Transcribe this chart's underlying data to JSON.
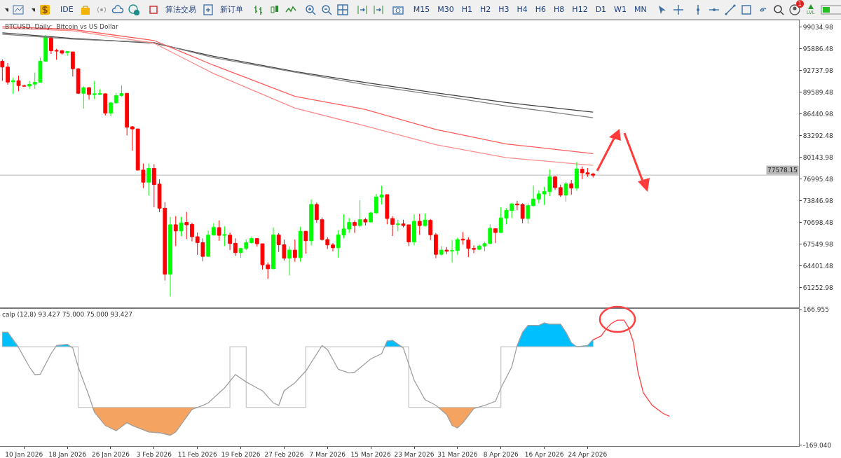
{
  "chart_data": [
    {
      "type": "other",
      "annotations": [
        "IDE",
        "算法交易",
        "新订单",
        "M15",
        "M30",
        "H1",
        "H2",
        "H3",
        "H4",
        "H6",
        "H8",
        "H12",
        "D1",
        "W1",
        "MN",
        "1",
        "LVL"
      ]
    },
    {
      "type": "candlestick",
      "title": "BTCUSD, Daily:  Bitcoin vs US Dollar",
      "x": [
        "2026-01-06",
        "2026-01-07",
        "2026-01-08",
        "2026-01-09",
        "2026-01-10",
        "2026-01-11",
        "2026-01-12",
        "2026-01-13",
        "2026-01-14",
        "2026-01-15",
        "2026-01-16",
        "2026-01-17",
        "2026-01-18",
        "2026-01-19",
        "2026-01-20",
        "2026-01-21",
        "2026-01-22",
        "2026-01-23",
        "2026-01-24",
        "2026-01-25",
        "2026-01-26",
        "2026-01-27",
        "2026-01-28",
        "2026-01-29",
        "2026-01-30",
        "2026-01-31",
        "2026-02-01",
        "2026-02-02",
        "2026-02-03",
        "2026-02-04",
        "2026-02-05",
        "2026-02-06",
        "2026-02-07",
        "2026-02-08",
        "2026-02-09",
        "2026-02-10",
        "2026-02-11",
        "2026-02-12",
        "2026-02-13",
        "2026-02-14",
        "2026-02-15",
        "2026-02-16",
        "2026-02-17",
        "2026-02-18",
        "2026-02-19",
        "2026-02-20",
        "2026-02-21",
        "2026-02-22",
        "2026-02-23",
        "2026-02-24",
        "2026-02-25",
        "2026-02-26",
        "2026-02-27",
        "2026-02-28",
        "2026-03-01",
        "2026-03-02",
        "2026-03-03",
        "2026-03-04",
        "2026-03-05",
        "2026-03-06",
        "2026-03-07",
        "2026-03-08",
        "2026-03-09",
        "2026-03-10",
        "2026-03-11",
        "2026-03-12",
        "2026-03-13",
        "2026-03-14",
        "2026-03-15",
        "2026-03-16",
        "2026-03-17",
        "2026-03-18",
        "2026-03-19",
        "2026-03-20",
        "2026-03-21",
        "2026-03-22",
        "2026-03-23",
        "2026-03-24",
        "2026-03-25",
        "2026-03-26",
        "2026-03-27",
        "2026-03-28",
        "2026-03-29",
        "2026-03-30",
        "2026-03-31",
        "2026-04-01",
        "2026-04-02",
        "2026-04-03",
        "2026-04-04",
        "2026-04-05",
        "2026-04-06",
        "2026-04-07",
        "2026-04-08",
        "2026-04-09",
        "2026-04-10",
        "2026-04-11",
        "2026-04-12",
        "2026-04-13",
        "2026-04-14",
        "2026-04-15",
        "2026-04-16",
        "2026-04-17",
        "2026-04-18",
        "2026-04-19",
        "2026-04-20",
        "2026-04-21",
        "2026-04-22",
        "2026-04-23",
        "2026-04-24",
        "2026-04-25"
      ],
      "ohlc": [
        [
          94090,
          94360,
          91240,
          93240
        ],
        [
          93240,
          93820,
          90690,
          91070
        ],
        [
          91100,
          91680,
          89340,
          91270
        ],
        [
          91270,
          91980,
          89740,
          90560
        ],
        [
          90530,
          90690,
          90360,
          90460
        ],
        [
          90490,
          91240,
          90080,
          90730
        ],
        [
          90760,
          92460,
          90050,
          91030
        ],
        [
          91030,
          94600,
          91030,
          94090
        ],
        [
          94090,
          97890,
          94090,
          97580
        ],
        [
          97580,
          97580,
          95140,
          95610
        ],
        [
          95650,
          95880,
          94290,
          95550
        ],
        [
          95610,
          95710,
          95040,
          95270
        ],
        [
          95340,
          95550,
          94870,
          95480
        ],
        [
          95440,
          95440,
          91880,
          93000
        ],
        [
          93000,
          93070,
          89340,
          89440
        ],
        [
          89440,
          90460,
          87230,
          90250
        ],
        [
          90250,
          90360,
          88520,
          89270
        ],
        [
          89270,
          91240,
          88590,
          89370
        ],
        [
          89300,
          90020,
          89200,
          89410
        ],
        [
          89370,
          89370,
          86220,
          86560
        ],
        [
          86560,
          88180,
          86150,
          88050
        ],
        [
          88050,
          89510,
          87910,
          89100
        ],
        [
          89100,
          90560,
          88930,
          89410
        ],
        [
          89440,
          89440,
          83330,
          84520
        ],
        [
          84590,
          84690,
          81130,
          84280
        ],
        [
          84280,
          84280,
          78250,
          78310
        ],
        [
          78310,
          79260,
          75700,
          76550
        ],
        [
          76550,
          79260,
          74620,
          78550
        ],
        [
          78550,
          79160,
          72920,
          76210
        ],
        [
          76280,
          76960,
          72210,
          72780
        ],
        [
          72780,
          73670,
          62300,
          63220
        ],
        [
          63220,
          71530,
          60000,
          70380
        ],
        [
          70380,
          71630,
          67290,
          69490
        ],
        [
          69490,
          71530,
          68750,
          70650
        ],
        [
          70720,
          72240,
          68310,
          70380
        ],
        [
          70440,
          70680,
          67970,
          68650
        ],
        [
          68650,
          69260,
          66030,
          67800
        ],
        [
          67800,
          68410,
          65120,
          65800
        ],
        [
          65800,
          69530,
          65800,
          68880
        ],
        [
          68880,
          70610,
          68880,
          70000
        ],
        [
          69970,
          71020,
          68070,
          68850
        ],
        [
          68850,
          70140,
          67290,
          68950
        ],
        [
          68880,
          69260,
          66710,
          67660
        ],
        [
          67700,
          68410,
          65870,
          66340
        ],
        [
          66340,
          67050,
          65590,
          66950
        ],
        [
          66950,
          68270,
          66710,
          67800
        ],
        [
          67800,
          68680,
          67630,
          68380
        ],
        [
          68380,
          68440,
          67220,
          67630
        ],
        [
          67630,
          67630,
          63900,
          64580
        ],
        [
          64580,
          64920,
          62540,
          64000
        ],
        [
          64000,
          70000,
          64000,
          68920
        ],
        [
          68920,
          69190,
          66440,
          67490
        ],
        [
          67490,
          68240,
          65190,
          65530
        ],
        [
          65530,
          67220,
          63050,
          66710
        ],
        [
          66710,
          68240,
          65020,
          65630
        ],
        [
          65630,
          70110,
          65020,
          69430
        ],
        [
          69430,
          69490,
          66200,
          68070
        ],
        [
          68070,
          74070,
          67390,
          73330
        ],
        [
          73330,
          73600,
          70680,
          71120
        ],
        [
          71120,
          71460,
          68070,
          68240
        ],
        [
          68240,
          68580,
          66880,
          67460
        ],
        [
          67460,
          67730,
          66540,
          67050
        ],
        [
          67050,
          69600,
          65590,
          68920
        ],
        [
          68920,
          71900,
          68410,
          69770
        ],
        [
          69770,
          71360,
          69190,
          70720
        ],
        [
          70720,
          71020,
          69190,
          70270
        ],
        [
          70270,
          73940,
          70000,
          71120
        ],
        [
          71120,
          71360,
          70270,
          70780
        ],
        [
          70780,
          72240,
          70720,
          72110
        ],
        [
          72110,
          74850,
          71970,
          74410
        ],
        [
          74410,
          76040,
          73330,
          74680
        ],
        [
          74750,
          74750,
          70440,
          71290
        ],
        [
          71290,
          71630,
          68750,
          70440
        ],
        [
          70410,
          71120,
          69430,
          70510
        ],
        [
          70510,
          71120,
          70000,
          70270
        ],
        [
          70380,
          70380,
          67290,
          67900
        ],
        [
          67900,
          71900,
          67390,
          70890
        ],
        [
          70890,
          71970,
          68920,
          70270
        ],
        [
          70270,
          72040,
          70110,
          71060
        ],
        [
          71020,
          71220,
          68170,
          68920
        ],
        [
          68920,
          69190,
          65530,
          66100
        ],
        [
          66100,
          67290,
          65930,
          66710
        ],
        [
          66710,
          67150,
          66140,
          66540
        ],
        [
          66580,
          68170,
          64920,
          66650
        ],
        [
          66650,
          68510,
          66030,
          68240
        ],
        [
          68310,
          69330,
          67490,
          68170
        ],
        [
          68170,
          68580,
          65700,
          66950
        ],
        [
          66950,
          67390,
          66270,
          66820
        ],
        [
          66820,
          67560,
          66710,
          67290
        ],
        [
          67290,
          67900,
          66540,
          67660
        ],
        [
          67660,
          70440,
          67630,
          69870
        ],
        [
          69830,
          69870,
          67730,
          69260
        ],
        [
          69260,
          72920,
          69190,
          71360
        ],
        [
          71360,
          72780,
          70440,
          72450
        ],
        [
          72450,
          73500,
          71360,
          73400
        ],
        [
          73400,
          73840,
          72480,
          73260
        ],
        [
          73330,
          73500,
          70610,
          71290
        ],
        [
          71290,
          73500,
          70550,
          73160
        ],
        [
          73160,
          76040,
          72990,
          74110
        ],
        [
          74110,
          75360,
          73500,
          74850
        ],
        [
          74850,
          75870,
          73260,
          75190
        ],
        [
          75190,
          78420,
          74510,
          77330
        ],
        [
          77330,
          77470,
          75430,
          75770
        ],
        [
          75770,
          76210,
          74410,
          74680
        ],
        [
          74680,
          76550,
          73730,
          76310
        ],
        [
          76310,
          76860,
          74750,
          75700
        ],
        [
          75700,
          79500,
          75300,
          78480
        ],
        [
          78420,
          78820,
          76990,
          77910
        ],
        [
          77910,
          78590,
          77330,
          77740
        ],
        [
          77740,
          77910,
          77230,
          77570
        ]
      ],
      "colors": [
        "#ff0000",
        "#ff0000",
        "#00ff00",
        "#ff0000",
        "#ff0000",
        "#00ff00",
        "#00ff00",
        "#00ff00",
        "#00ff00",
        "#ff0000",
        "#ff0000",
        "#ff0000",
        "#00ff00",
        "#ff0000",
        "#ff0000",
        "#00ff00",
        "#ff0000",
        "#00ff00",
        "#00ff00",
        "#ff0000",
        "#00ff00",
        "#00ff00",
        "#00ff00",
        "#ff0000",
        "#ff0000",
        "#ff0000",
        "#ff0000",
        "#00ff00",
        "#ff0000",
        "#ff0000",
        "#ff0000",
        "#00ff00",
        "#ff0000",
        "#00ff00",
        "#ff0000",
        "#ff0000",
        "#ff0000",
        "#ff0000",
        "#00ff00",
        "#00ff00",
        "#ff0000",
        "#00ff00",
        "#ff0000",
        "#ff0000",
        "#00ff00",
        "#00ff00",
        "#00ff00",
        "#ff0000",
        "#ff0000",
        "#ff0000",
        "#00ff00",
        "#ff0000",
        "#ff0000",
        "#00ff00",
        "#ff0000",
        "#00ff00",
        "#ff0000",
        "#00ff00",
        "#ff0000",
        "#ff0000",
        "#ff0000",
        "#ff0000",
        "#00ff00",
        "#00ff00",
        "#00ff00",
        "#ff0000",
        "#00ff00",
        "#ff0000",
        "#00ff00",
        "#00ff00",
        "#00ff00",
        "#ff0000",
        "#ff0000",
        "#00ff00",
        "#ff0000",
        "#ff0000",
        "#00ff00",
        "#ff0000",
        "#00ff00",
        "#ff0000",
        "#ff0000",
        "#00ff00",
        "#ff0000",
        "#00ff00",
        "#00ff00",
        "#ff0000",
        "#ff0000",
        "#ff0000",
        "#00ff00",
        "#00ff00",
        "#00ff00",
        "#ff0000",
        "#00ff00",
        "#00ff00",
        "#00ff00",
        "#ff0000",
        "#ff0000",
        "#00ff00",
        "#00ff00",
        "#00ff00",
        "#00ff00",
        "#00ff00",
        "#ff0000",
        "#ff0000",
        "#00ff00",
        "#ff0000",
        "#00ff00",
        "#ff0000",
        "#ff0000",
        "#ff0000"
      ],
      "series": [
        {
          "type": "line",
          "color": "#404040",
          "x": [
            "2026-01-06",
            "2026-01-19",
            "2026-02-03",
            "2026-02-14",
            "2026-03-01",
            "2026-03-14",
            "2026-03-27",
            "2026-04-09",
            "2026-04-25"
          ],
          "values": [
            98200,
            97400,
            96700,
            94800,
            92600,
            91000,
            89500,
            88100,
            86700
          ]
        },
        {
          "type": "line",
          "color": "#808080",
          "x": [
            "2026-01-06",
            "2026-01-19",
            "2026-02-03",
            "2026-02-14",
            "2026-03-01",
            "2026-03-14",
            "2026-03-27",
            "2026-04-09",
            "2026-04-25"
          ],
          "values": [
            98000,
            97300,
            96800,
            94600,
            92500,
            90700,
            89200,
            87600,
            85900
          ]
        },
        {
          "type": "line",
          "color": "#ff5a5a",
          "x": [
            "2026-01-06",
            "2026-01-19",
            "2026-02-03",
            "2026-02-14",
            "2026-03-01",
            "2026-03-14",
            "2026-03-27",
            "2026-04-09",
            "2026-04-25"
          ],
          "values": [
            99100,
            98700,
            97100,
            93500,
            89000,
            87100,
            84200,
            82100,
            80700
          ]
        },
        {
          "type": "line",
          "color": "#ff8c8c",
          "x": [
            "2026-01-06",
            "2026-01-19",
            "2026-02-03",
            "2026-02-14",
            "2026-03-01",
            "2026-03-14",
            "2026-03-27",
            "2026-04-09",
            "2026-04-25"
          ],
          "values": [
            98900,
            98500,
            96700,
            92300,
            87300,
            84700,
            82000,
            80100,
            79000
          ]
        }
      ],
      "xlim": [
        "2026-01-05T13:40",
        "2026-06-02"
      ],
      "ylim": [
        58400,
        100020
      ],
      "yticks": [
        99034.98,
        95886.48,
        92737.98,
        89589.48,
        86440.98,
        83292.48,
        80143.98,
        76995.48,
        73846.98,
        70698.48,
        67549.98,
        64401.48,
        61252.98
      ],
      "tick_labels": "y",
      "ref_lines": [
        {
          "axis": "y",
          "value": 77578.15,
          "label": "77578.15",
          "color": "#b8b8b8"
        }
      ]
    },
    {
      "type": "line",
      "annotations": [
        "calp (12,8) 93.427 75.000 75.000 93.427"
      ],
      "series": [
        {
          "type": "area",
          "color": "#00bfff",
          "x": [
            "2026-01-06",
            "2026-01-06",
            "2026-01-07",
            "2026-01-09"
          ],
          "values": [
            75,
            111,
            111,
            75
          ]
        },
        {
          "type": "area",
          "color": "#00bfff",
          "x": [
            "2026-01-15T20:00",
            "2026-01-16",
            "2026-01-18",
            "2026-01-18T16:00"
          ],
          "values": [
            75,
            78,
            81,
            75
          ]
        },
        {
          "type": "area",
          "color": "#00bfff",
          "x": [
            "2026-03-17T13:00",
            "2026-03-18",
            "2026-03-19",
            "2026-03-20T19:00"
          ],
          "values": [
            75,
            89,
            91,
            75
          ]
        },
        {
          "type": "area",
          "color": "#00bfff",
          "x": [
            "2026-04-10T23:00",
            "2026-04-11",
            "2026-04-12",
            "2026-04-13",
            "2026-04-15",
            "2026-04-16",
            "2026-04-17",
            "2026-04-19",
            "2026-04-20",
            "2026-04-21",
            "2026-04-22",
            "2026-04-24",
            "2026-04-25",
            "2026-04-25"
          ],
          "values": [
            75,
            78,
            111,
            128,
            128,
            134,
            131,
            131,
            111,
            85,
            75,
            78,
            93,
            75
          ]
        },
        {
          "type": "area",
          "color": "#f4a460",
          "x": [
            "2026-01-22T17:00",
            "2026-01-23",
            "2026-01-25",
            "2026-01-27",
            "2026-01-29",
            "2026-01-30",
            "2026-02-02",
            "2026-02-04",
            "2026-02-06",
            "2026-02-07",
            "2026-02-10",
            "2026-02-10T12:00"
          ],
          "values": [
            -75,
            -87,
            -120,
            -133,
            -113,
            -120,
            -136,
            -138,
            -144,
            -136,
            -80,
            -75
          ]
        },
        {
          "type": "area",
          "color": "#f4a460",
          "x": [
            "2026-03-27T10:00",
            "2026-03-29",
            "2026-03-30",
            "2026-03-31",
            "2026-04-01",
            "2026-04-03",
            "2026-04-03T10:00"
          ],
          "values": [
            -75,
            -93,
            -120,
            -126,
            -113,
            -78,
            -75
          ]
        },
        {
          "type": "step",
          "color": "#c8c8c8",
          "x": [
            "2026-01-06",
            "2026-01-20",
            "2026-02-17",
            "2026-02-20",
            "2026-03-03",
            "2026-03-22",
            "2026-04-08",
            "2026-04-25"
          ],
          "values": [
            75,
            -75,
            75,
            -75,
            75,
            -75,
            75,
            75
          ]
        },
        {
          "type": "line",
          "color": "#ff4040",
          "x": [
            "2026-04-25",
            "2026-04-26T12:00",
            "2026-04-27T14:00",
            "2026-04-28T10:00",
            "2026-04-29T12:00",
            "2026-04-30T17:00",
            "2026-05-01T12:00",
            "2026-05-02T10:00",
            "2026-05-03T07:00",
            "2026-05-04T07:00",
            "2026-05-05T22:00",
            "2026-05-07T22:00",
            "2026-05-09T02:00"
          ],
          "values": [
            92,
            102,
            122,
            133,
            141,
            141,
            124,
            88,
            13,
            -39,
            -70,
            -90,
            -97
          ]
        },
        {
          "type": "line",
          "color": "#a0a0a0",
          "x": [
            "2026-01-06",
            "2026-01-07",
            "2026-01-09",
            "2026-01-11",
            "2026-01-12",
            "2026-01-13",
            "2026-01-15",
            "2026-01-16",
            "2026-01-18",
            "2026-01-19",
            "2026-01-20",
            "2026-01-22",
            "2026-01-23",
            "2026-01-25",
            "2026-01-27",
            "2026-01-29",
            "2026-01-30",
            "2026-02-02",
            "2026-02-04",
            "2026-02-06",
            "2026-02-07",
            "2026-02-10",
            "2026-02-12",
            "2026-02-13",
            "2026-02-16",
            "2026-02-18",
            "2026-02-20",
            "2026-02-22",
            "2026-02-23",
            "2026-02-25",
            "2026-02-26",
            "2026-02-27",
            "2026-03-01",
            "2026-03-03",
            "2026-03-06",
            "2026-03-07",
            "2026-03-09",
            "2026-03-11",
            "2026-03-12",
            "2026-03-15",
            "2026-03-17",
            "2026-03-18",
            "2026-03-19",
            "2026-03-21",
            "2026-03-23",
            "2026-03-25",
            "2026-03-27",
            "2026-03-29",
            "2026-03-30",
            "2026-03-31",
            "2026-04-01",
            "2026-04-03",
            "2026-04-05",
            "2026-04-07",
            "2026-04-08",
            "2026-04-10",
            "2026-04-11",
            "2026-04-12",
            "2026-04-13",
            "2026-04-15",
            "2026-04-16",
            "2026-04-17",
            "2026-04-19",
            "2026-04-20",
            "2026-04-21",
            "2026-04-22",
            "2026-04-24",
            "2026-04-25"
          ],
          "values": [
            111,
            111,
            73,
            25,
            6,
            7,
            58,
            78,
            81,
            72,
            25,
            -47,
            -87,
            -120,
            -133,
            -113,
            -120,
            -136,
            -138,
            -144,
            -136,
            -80,
            -70,
            -64,
            -27,
            6,
            -12,
            -27,
            -34,
            -64,
            -70,
            -34,
            -14,
            15,
            78,
            68,
            19,
            10,
            12,
            45,
            58,
            89,
            91,
            72,
            -8,
            -56,
            -70,
            -93,
            -120,
            -126,
            -113,
            -78,
            -70,
            -60,
            -27,
            25,
            78,
            111,
            128,
            128,
            134,
            131,
            131,
            111,
            85,
            75,
            78,
            93
          ]
        }
      ],
      "xlim": [
        "2026-01-05T13:40",
        "2026-06-02"
      ],
      "xticks": [
        {
          "value": "2026-01-10",
          "label": "10 Jan 2026"
        },
        {
          "value": "2026-01-18",
          "label": "18 Jan 2026"
        },
        {
          "value": "2026-01-26",
          "label": "26 Jan 2026"
        },
        {
          "value": "2026-02-03",
          "label": "3 Feb 2026"
        },
        {
          "value": "2026-02-11",
          "label": "11 Feb 2026"
        },
        {
          "value": "2026-02-19",
          "label": "19 Feb 2026"
        },
        {
          "value": "2026-02-27",
          "label": "27 Feb 2026"
        },
        {
          "value": "2026-03-07",
          "label": "7 Mar 2026"
        },
        {
          "value": "2026-03-15",
          "label": "15 Mar 2026"
        },
        {
          "value": "2026-03-23",
          "label": "23 Mar 2026"
        },
        {
          "value": "2026-03-31",
          "label": "31 Mar 2026"
        },
        {
          "value": "2026-04-08",
          "label": "8 Apr 2026"
        },
        {
          "value": "2026-04-16",
          "label": "16 Apr 2026"
        },
        {
          "value": "2026-04-24",
          "label": "24 Apr 2026"
        }
      ],
      "ylim": [
        -171,
        169
      ],
      "yticks": [
        166.955,
        {
          "value": -169.04,
          "label": "-169.040"
        }
      ]
    }
  ]
}
